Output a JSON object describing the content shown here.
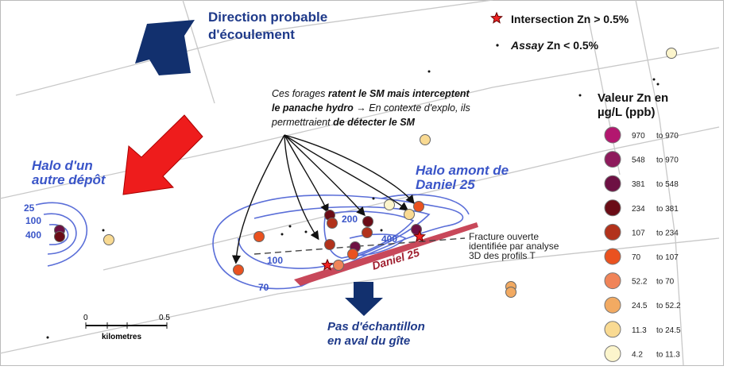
{
  "map": {
    "flow": {
      "lines": [
        "Direction probable",
        "d'écoulement"
      ]
    },
    "symbols": {
      "intersection": "Intersection Zn > 0.5%",
      "assay_prefix": "Assay",
      "assay_rest": " Zn < 0.5%"
    },
    "note": {
      "lines": [
        [
          {
            "t": "Ces forages ",
            "b": false
          },
          {
            "t": "ratent le SM mais interceptent",
            "b": true
          }
        ],
        [
          {
            "t": "le panache hydro",
            "b": true
          },
          {
            "t": " → En contexte d'explo, ils",
            "b": false
          }
        ],
        [
          {
            "t": "permettraient ",
            "b": false
          },
          {
            "t": "de détecter le SM",
            "b": true
          }
        ]
      ]
    },
    "halo_other": {
      "lines": [
        "Halo d'un",
        "autre dépôt"
      ]
    },
    "halo_upstream": {
      "lines": [
        "Halo amont de",
        "Daniel 25"
      ]
    },
    "contours": [
      "25",
      "100",
      "400",
      "200",
      "400",
      "100",
      "70"
    ],
    "fracture": {
      "lines": [
        "Fracture ouverte",
        "identifiée par analyse",
        "3D des profils T"
      ]
    },
    "deposit": "Daniel 25",
    "no_sample": {
      "lines": [
        "Pas d'échantillon",
        "en aval du gîte"
      ]
    },
    "scale": {
      "start": "0",
      "end": "0.5",
      "unit": "kilometres"
    },
    "legend": {
      "title": [
        "Valeur Zn en",
        "µg/L (ppb)"
      ],
      "classes": [
        {
          "from": "970",
          "to": "to 970",
          "color": "#b3176f"
        },
        {
          "from": "548",
          "to": "to 970",
          "color": "#8e1a5c"
        },
        {
          "from": "381",
          "to": "to 548",
          "color": "#6d1043"
        },
        {
          "from": "234",
          "to": "to 381",
          "color": "#6a0c16"
        },
        {
          "from": "107",
          "to": "to 234",
          "color": "#b2321b"
        },
        {
          "from": "70",
          "to": "to 107",
          "color": "#ea5220"
        },
        {
          "from": "52.2",
          "to": "to 70",
          "color": "#f08458"
        },
        {
          "from": "24.5",
          "to": "to 52.2",
          "color": "#f2aa62"
        },
        {
          "from": "11.3",
          "to": "to 24.5",
          "color": "#f9da92"
        },
        {
          "from": "4.2",
          "to": "to 11.3",
          "color": "#fcf5cc"
        }
      ]
    }
  }
}
